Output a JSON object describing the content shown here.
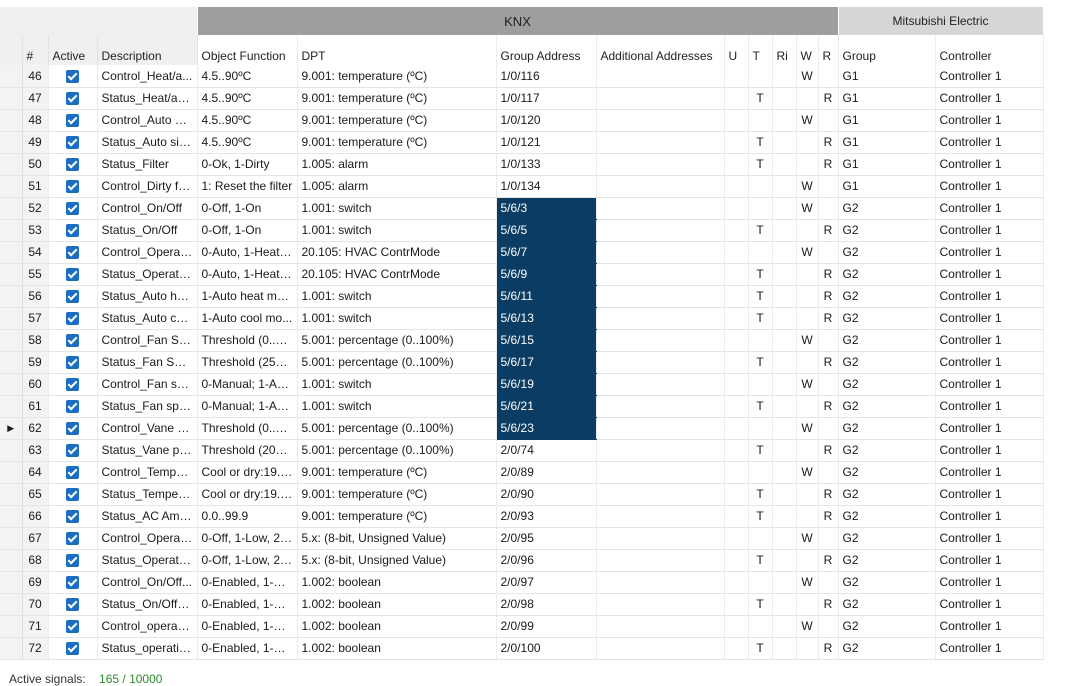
{
  "headers": {
    "group_knx": "KNX",
    "group_mitsubishi": "Mitsubishi Electric",
    "columns": [
      "#",
      "Active",
      "Description",
      "Object Function",
      "DPT",
      "Group Address",
      "Additional Addresses",
      "U",
      "T",
      "Ri",
      "W",
      "R",
      "Group",
      "Controller"
    ]
  },
  "current_row_indicator": "62",
  "rows": [
    {
      "num": "46",
      "active": true,
      "desc": "Control_Heat/a...",
      "func": "4.5..90ºC",
      "dpt": "9.001: temperature (ºC)",
      "ga": "1/0/116",
      "hl": false,
      "u": "",
      "t": "",
      "ri": "",
      "w": "W",
      "r": "",
      "group": "G1",
      "ctrl": "Controller 1"
    },
    {
      "num": "47",
      "active": true,
      "desc": "Status_Heat/aut...",
      "func": "4.5..90ºC",
      "dpt": "9.001: temperature (ºC)",
      "ga": "1/0/117",
      "hl": false,
      "u": "",
      "t": "T",
      "ri": "",
      "w": "",
      "r": "R",
      "group": "G1",
      "ctrl": "Controller 1"
    },
    {
      "num": "48",
      "active": true,
      "desc": "Control_Auto si...",
      "func": "4.5..90ºC",
      "dpt": "9.001: temperature (ºC)",
      "ga": "1/0/120",
      "hl": false,
      "u": "",
      "t": "",
      "ri": "",
      "w": "W",
      "r": "",
      "group": "G1",
      "ctrl": "Controller 1"
    },
    {
      "num": "49",
      "active": true,
      "desc": "Status_Auto sin...",
      "func": "4.5..90ºC",
      "dpt": "9.001: temperature (ºC)",
      "ga": "1/0/121",
      "hl": false,
      "u": "",
      "t": "T",
      "ri": "",
      "w": "",
      "r": "R",
      "group": "G1",
      "ctrl": "Controller 1"
    },
    {
      "num": "50",
      "active": true,
      "desc": "Status_Filter",
      "func": "0-Ok, 1-Dirty",
      "dpt": "1.005: alarm",
      "ga": "1/0/133",
      "hl": false,
      "u": "",
      "t": "T",
      "ri": "",
      "w": "",
      "r": "R",
      "group": "G1",
      "ctrl": "Controller 1"
    },
    {
      "num": "51",
      "active": true,
      "desc": "Control_Dirty fil...",
      "func": "1: Reset the filter",
      "dpt": "1.005: alarm",
      "ga": "1/0/134",
      "hl": false,
      "u": "",
      "t": "",
      "ri": "",
      "w": "W",
      "r": "",
      "group": "G1",
      "ctrl": "Controller 1"
    },
    {
      "num": "52",
      "active": true,
      "desc": "Control_On/Off",
      "func": "0-Off, 1-On",
      "dpt": "1.001: switch",
      "ga": "5/6/3",
      "hl": true,
      "u": "",
      "t": "",
      "ri": "",
      "w": "W",
      "r": "",
      "group": "G2",
      "ctrl": "Controller 1"
    },
    {
      "num": "53",
      "active": true,
      "desc": "Status_On/Off",
      "func": "0-Off, 1-On",
      "dpt": "1.001: switch",
      "ga": "5/6/5",
      "hl": true,
      "u": "",
      "t": "T",
      "ri": "",
      "w": "",
      "r": "R",
      "group": "G2",
      "ctrl": "Controller 1"
    },
    {
      "num": "54",
      "active": true,
      "desc": "Control_Operati...",
      "func": "0-Auto, 1-Heat,...",
      "dpt": "20.105: HVAC ContrMode",
      "ga": "5/6/7",
      "hl": true,
      "u": "",
      "t": "",
      "ri": "",
      "w": "W",
      "r": "",
      "group": "G2",
      "ctrl": "Controller 1"
    },
    {
      "num": "55",
      "active": true,
      "desc": "Status_Operatio...",
      "func": "0-Auto, 1-Heat,...",
      "dpt": "20.105: HVAC ContrMode",
      "ga": "5/6/9",
      "hl": true,
      "u": "",
      "t": "T",
      "ri": "",
      "w": "",
      "r": "R",
      "group": "G2",
      "ctrl": "Controller 1"
    },
    {
      "num": "56",
      "active": true,
      "desc": "Status_Auto he...",
      "func": "1-Auto heat mo...",
      "dpt": "1.001: switch",
      "ga": "5/6/11",
      "hl": true,
      "u": "",
      "t": "T",
      "ri": "",
      "w": "",
      "r": "R",
      "group": "G2",
      "ctrl": "Controller 1"
    },
    {
      "num": "57",
      "active": true,
      "desc": "Status_Auto co...",
      "func": "1-Auto cool mo...",
      "dpt": "1.001: switch",
      "ga": "5/6/13",
      "hl": true,
      "u": "",
      "t": "T",
      "ri": "",
      "w": "",
      "r": "R",
      "group": "G2",
      "ctrl": "Controller 1"
    },
    {
      "num": "58",
      "active": true,
      "desc": "Control_Fan Sp...",
      "func": "Threshold (0..37...",
      "dpt": "5.001: percentage (0..100%)",
      "ga": "5/6/15",
      "hl": true,
      "u": "",
      "t": "",
      "ri": "",
      "w": "W",
      "r": "",
      "group": "G2",
      "ctrl": "Controller 1"
    },
    {
      "num": "59",
      "active": true,
      "desc": "Status_Fan Spee...",
      "func": "Threshold (25%,...",
      "dpt": "5.001: percentage (0..100%)",
      "ga": "5/6/17",
      "hl": true,
      "u": "",
      "t": "T",
      "ri": "",
      "w": "",
      "r": "R",
      "group": "G2",
      "ctrl": "Controller 1"
    },
    {
      "num": "60",
      "active": true,
      "desc": "Control_Fan sp...",
      "func": "0-Manual; 1-Au...",
      "dpt": "1.001: switch",
      "ga": "5/6/19",
      "hl": true,
      "u": "",
      "t": "",
      "ri": "",
      "w": "W",
      "r": "",
      "group": "G2",
      "ctrl": "Controller 1"
    },
    {
      "num": "61",
      "active": true,
      "desc": "Status_Fan spee...",
      "func": "0-Manual; 1-Au...",
      "dpt": "1.001: switch",
      "ga": "5/6/21",
      "hl": true,
      "u": "",
      "t": "T",
      "ri": "",
      "w": "",
      "r": "R",
      "group": "G2",
      "ctrl": "Controller 1"
    },
    {
      "num": "62",
      "active": true,
      "desc": "Control_Vane p...",
      "func": "Threshold (0..37...",
      "dpt": "5.001: percentage (0..100%)",
      "ga": "5/6/23",
      "hl": true,
      "u": "",
      "t": "",
      "ri": "",
      "w": "W",
      "r": "",
      "group": "G2",
      "ctrl": "Controller 1"
    },
    {
      "num": "63",
      "active": true,
      "desc": "Status_Vane pos...",
      "func": "Threshold (20%,...",
      "dpt": "5.001: percentage (0..100%)",
      "ga": "2/0/74",
      "hl": false,
      "u": "",
      "t": "T",
      "ri": "",
      "w": "",
      "r": "R",
      "group": "G2",
      "ctrl": "Controller 1"
    },
    {
      "num": "64",
      "active": true,
      "desc": "Control_Temper...",
      "func": "Cool or dry:19.....",
      "dpt": "9.001: temperature (ºC)",
      "ga": "2/0/89",
      "hl": false,
      "u": "",
      "t": "",
      "ri": "",
      "w": "W",
      "r": "",
      "group": "G2",
      "ctrl": "Controller 1"
    },
    {
      "num": "65",
      "active": true,
      "desc": "Status_Tempera...",
      "func": "Cool or dry:19.....",
      "dpt": "9.001: temperature (ºC)",
      "ga": "2/0/90",
      "hl": false,
      "u": "",
      "t": "T",
      "ri": "",
      "w": "",
      "r": "R",
      "group": "G2",
      "ctrl": "Controller 1"
    },
    {
      "num": "66",
      "active": true,
      "desc": "Status_AC Amb...",
      "func": "0.0..99.9",
      "dpt": "9.001: temperature (ºC)",
      "ga": "2/0/93",
      "hl": false,
      "u": "",
      "t": "T",
      "ri": "",
      "w": "",
      "r": "R",
      "group": "G2",
      "ctrl": "Controller 1"
    },
    {
      "num": "67",
      "active": true,
      "desc": "Control_Operati...",
      "func": "0-Off, 1-Low, 2-...",
      "dpt": "5.x: (8-bit, Unsigned Value)",
      "ga": "2/0/95",
      "hl": false,
      "u": "",
      "t": "",
      "ri": "",
      "w": "W",
      "r": "",
      "group": "G2",
      "ctrl": "Controller 1"
    },
    {
      "num": "68",
      "active": true,
      "desc": "Status_Operatio...",
      "func": "0-Off, 1-Low, 2-...",
      "dpt": "5.x: (8-bit, Unsigned Value)",
      "ga": "2/0/96",
      "hl": false,
      "u": "",
      "t": "T",
      "ri": "",
      "w": "",
      "r": "R",
      "group": "G2",
      "ctrl": "Controller 1"
    },
    {
      "num": "69",
      "active": true,
      "desc": "Control_On/Off...",
      "func": "0-Enabled, 1-Di...",
      "dpt": "1.002: boolean",
      "ga": "2/0/97",
      "hl": false,
      "u": "",
      "t": "",
      "ri": "",
      "w": "W",
      "r": "",
      "group": "G2",
      "ctrl": "Controller 1"
    },
    {
      "num": "70",
      "active": true,
      "desc": "Status_On/Off c...",
      "func": "0-Enabled, 1-Di...",
      "dpt": "1.002: boolean",
      "ga": "2/0/98",
      "hl": false,
      "u": "",
      "t": "T",
      "ri": "",
      "w": "",
      "r": "R",
      "group": "G2",
      "ctrl": "Controller 1"
    },
    {
      "num": "71",
      "active": true,
      "desc": "Control_operati...",
      "func": "0-Enabled, 1-Di...",
      "dpt": "1.002: boolean",
      "ga": "2/0/99",
      "hl": false,
      "u": "",
      "t": "",
      "ri": "",
      "w": "W",
      "r": "",
      "group": "G2",
      "ctrl": "Controller 1"
    },
    {
      "num": "72",
      "active": true,
      "desc": "Status_operatin...",
      "func": "0-Enabled, 1-Di...",
      "dpt": "1.002: boolean",
      "ga": "2/0/100",
      "hl": false,
      "u": "",
      "t": "T",
      "ri": "",
      "w": "",
      "r": "R",
      "group": "G2",
      "ctrl": "Controller 1"
    }
  ],
  "footer": {
    "label": "Active signals:",
    "value": "165 / 10000"
  },
  "colors": {
    "accent": "#1b6ec2",
    "highlight": "#0b3d64",
    "ok_text": "#2e8b2e"
  }
}
